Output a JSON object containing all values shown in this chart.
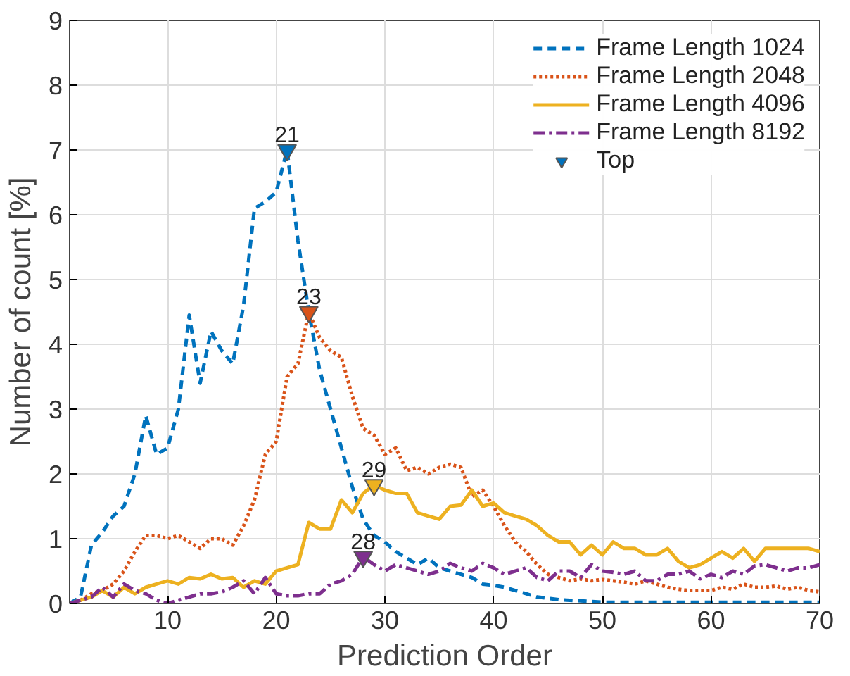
{
  "chart_data": {
    "type": "line",
    "xlabel": "Prediction Order",
    "ylabel": "Number of count [%]",
    "x": [
      1,
      2,
      3,
      4,
      5,
      6,
      7,
      8,
      9,
      10,
      11,
      12,
      13,
      14,
      15,
      16,
      17,
      18,
      19,
      20,
      21,
      22,
      23,
      24,
      25,
      26,
      27,
      28,
      29,
      30,
      31,
      32,
      33,
      34,
      35,
      36,
      37,
      38,
      39,
      40,
      41,
      42,
      43,
      44,
      45,
      46,
      47,
      48,
      49,
      50,
      51,
      52,
      53,
      54,
      55,
      56,
      57,
      58,
      59,
      60,
      61,
      62,
      63,
      64,
      65,
      66,
      67,
      68,
      69,
      70
    ],
    "xlim": [
      1,
      70
    ],
    "ylim": [
      0,
      9
    ],
    "xticks": [
      10,
      20,
      30,
      40,
      50,
      60,
      70
    ],
    "yticks": [
      0,
      1,
      2,
      3,
      4,
      5,
      6,
      7,
      8,
      9
    ],
    "grid": true,
    "legend": "top right",
    "marker": "none",
    "series": [
      {
        "name": "Frame Length 1024",
        "color": "#0072bd",
        "line_style": "dashed",
        "values": [
          0,
          0.1,
          0.9,
          1.1,
          1.35,
          1.5,
          2.0,
          2.9,
          2.3,
          2.4,
          3.0,
          4.45,
          3.4,
          4.2,
          3.9,
          3.7,
          4.6,
          6.1,
          6.2,
          6.35,
          7.0,
          5.6,
          4.5,
          3.6,
          3.0,
          2.4,
          1.8,
          1.3,
          1.05,
          0.95,
          0.8,
          0.7,
          0.6,
          0.7,
          0.55,
          0.5,
          0.45,
          0.4,
          0.3,
          0.28,
          0.25,
          0.2,
          0.15,
          0.1,
          0.08,
          0.06,
          0.05,
          0.04,
          0.03,
          0.02,
          0.02,
          0.02,
          0.02,
          0.02,
          0.02,
          0.02,
          0.02,
          0.02,
          0.02,
          0.02,
          0.02,
          0.02,
          0.02,
          0.02,
          0.02,
          0.02,
          0.02,
          0.02,
          0.02,
          0.02
        ]
      },
      {
        "name": "Frame Length 2048",
        "color": "#d95319",
        "line_style": "dotted",
        "values": [
          0,
          0.05,
          0.15,
          0.2,
          0.3,
          0.5,
          0.8,
          1.05,
          1.05,
          1.0,
          1.05,
          0.95,
          0.85,
          1.0,
          1.0,
          0.9,
          1.2,
          1.6,
          2.3,
          2.5,
          3.5,
          3.7,
          4.5,
          4.1,
          3.9,
          3.8,
          3.2,
          2.7,
          2.6,
          2.3,
          2.4,
          2.05,
          2.1,
          2.0,
          2.1,
          2.15,
          2.1,
          1.65,
          1.75,
          1.5,
          1.2,
          0.95,
          0.8,
          0.6,
          0.45,
          0.4,
          0.35,
          0.38,
          0.35,
          0.37,
          0.35,
          0.33,
          0.3,
          0.35,
          0.3,
          0.25,
          0.22,
          0.2,
          0.2,
          0.2,
          0.25,
          0.22,
          0.3,
          0.25,
          0.25,
          0.27,
          0.22,
          0.25,
          0.2,
          0.18
        ]
      },
      {
        "name": "Frame Length 4096",
        "color": "#edb120",
        "line_style": "solid",
        "values": [
          0,
          0.05,
          0.1,
          0.2,
          0.1,
          0.25,
          0.15,
          0.25,
          0.3,
          0.35,
          0.3,
          0.4,
          0.38,
          0.45,
          0.38,
          0.4,
          0.25,
          0.35,
          0.3,
          0.5,
          0.55,
          0.6,
          1.25,
          1.15,
          1.15,
          1.6,
          1.4,
          1.7,
          1.83,
          1.75,
          1.7,
          1.7,
          1.4,
          1.35,
          1.3,
          1.5,
          1.52,
          1.75,
          1.5,
          1.55,
          1.4,
          1.35,
          1.3,
          1.2,
          1.05,
          0.95,
          0.95,
          0.75,
          0.9,
          0.75,
          0.95,
          0.85,
          0.85,
          0.75,
          0.75,
          0.85,
          0.65,
          0.55,
          0.6,
          0.7,
          0.8,
          0.7,
          0.85,
          0.65,
          0.85,
          0.85,
          0.85,
          0.85,
          0.85,
          0.8
        ]
      },
      {
        "name": "Frame Length 8192",
        "color": "#7e2f8e",
        "line_style": "dashdot",
        "values": [
          0,
          0.05,
          0.1,
          0.25,
          0.1,
          0.3,
          0.2,
          0.15,
          0.05,
          0.0,
          0.05,
          0.1,
          0.15,
          0.15,
          0.18,
          0.25,
          0.35,
          0.15,
          0.4,
          0.15,
          0.12,
          0.12,
          0.15,
          0.15,
          0.3,
          0.35,
          0.45,
          0.72,
          0.6,
          0.5,
          0.6,
          0.55,
          0.5,
          0.45,
          0.5,
          0.62,
          0.55,
          0.5,
          0.62,
          0.55,
          0.45,
          0.5,
          0.55,
          0.4,
          0.35,
          0.5,
          0.5,
          0.4,
          0.6,
          0.5,
          0.48,
          0.45,
          0.5,
          0.35,
          0.35,
          0.45,
          0.45,
          0.5,
          0.38,
          0.45,
          0.4,
          0.5,
          0.45,
          0.58,
          0.6,
          0.55,
          0.5,
          0.55,
          0.55,
          0.6
        ]
      },
      {
        "name": "Top",
        "type": "scatter",
        "marker": "triangle",
        "x": [
          21,
          23,
          29,
          28
        ],
        "values": [
          7.0,
          4.5,
          1.83,
          0.72
        ],
        "colors": [
          "#0072bd",
          "#d95319",
          "#edb120",
          "#7e2f8e"
        ]
      }
    ],
    "annotations": [
      {
        "text": "21",
        "x": 21,
        "y": 7.0
      },
      {
        "text": "23",
        "x": 23,
        "y": 4.5
      },
      {
        "text": "29",
        "x": 29,
        "y": 1.83
      },
      {
        "text": "28",
        "x": 28,
        "y": 0.72
      }
    ]
  }
}
